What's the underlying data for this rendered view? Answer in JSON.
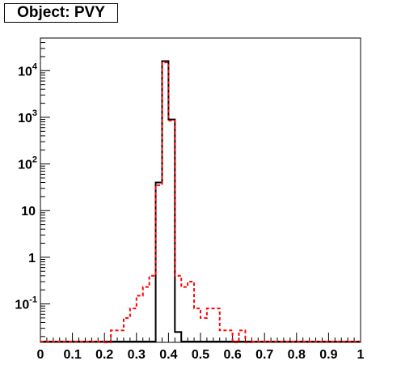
{
  "chart_data": {
    "type": "histogram",
    "title": "Object: PVY",
    "xlabel": "",
    "ylabel": "",
    "xlim": [
      0,
      1
    ],
    "ylim": [
      0.015,
      50000
    ],
    "yscale": "log",
    "grid": false,
    "legend": "none",
    "bin_width": 0.02,
    "x_ticks": [
      {
        "value": 0,
        "label": "0"
      },
      {
        "value": 0.1,
        "label": "0.1"
      },
      {
        "value": 0.2,
        "label": "0.2"
      },
      {
        "value": 0.3,
        "label": "0.3"
      },
      {
        "value": 0.4,
        "label": "0.4"
      },
      {
        "value": 0.5,
        "label": "0.5"
      },
      {
        "value": 0.6,
        "label": "0.6"
      },
      {
        "value": 0.7,
        "label": "0.7"
      },
      {
        "value": 0.8,
        "label": "0.8"
      },
      {
        "value": 0.9,
        "label": "0.9"
      },
      {
        "value": 1,
        "label": "1"
      }
    ],
    "y_ticks": [
      {
        "value": 0.1,
        "base": "10",
        "exp": "-1"
      },
      {
        "value": 1,
        "base": "1",
        "exp": ""
      },
      {
        "value": 10,
        "base": "10",
        "exp": ""
      },
      {
        "value": 100,
        "base": "10",
        "exp": "2"
      },
      {
        "value": 1000,
        "base": "10",
        "exp": "3"
      },
      {
        "value": 10000,
        "base": "10",
        "exp": "4"
      }
    ],
    "series": [
      {
        "color": "#000000",
        "line_style": "solid",
        "bins": [
          {
            "x0": 0.36,
            "value": 40
          },
          {
            "x0": 0.38,
            "value": 16000
          },
          {
            "x0": 0.4,
            "value": 900
          },
          {
            "x0": 0.42,
            "value": 0.025
          }
        ]
      },
      {
        "color": "#ff0000",
        "line_style": "dashed",
        "bins": [
          {
            "x0": 0.2,
            "value": 0.015
          },
          {
            "x0": 0.22,
            "value": 0.027
          },
          {
            "x0": 0.24,
            "value": 0.027
          },
          {
            "x0": 0.26,
            "value": 0.05
          },
          {
            "x0": 0.28,
            "value": 0.08
          },
          {
            "x0": 0.3,
            "value": 0.15
          },
          {
            "x0": 0.32,
            "value": 0.23
          },
          {
            "x0": 0.34,
            "value": 0.4
          },
          {
            "x0": 0.36,
            "value": 35
          },
          {
            "x0": 0.38,
            "value": 15000
          },
          {
            "x0": 0.4,
            "value": 850
          },
          {
            "x0": 0.42,
            "value": 0.4
          },
          {
            "x0": 0.44,
            "value": 0.23
          },
          {
            "x0": 0.46,
            "value": 0.3
          },
          {
            "x0": 0.48,
            "value": 0.08
          },
          {
            "x0": 0.5,
            "value": 0.05
          },
          {
            "x0": 0.52,
            "value": 0.08
          },
          {
            "x0": 0.54,
            "value": 0.08
          },
          {
            "x0": 0.56,
            "value": 0.027
          },
          {
            "x0": 0.58,
            "value": 0.027
          },
          {
            "x0": 0.6,
            "value": 0.015
          },
          {
            "x0": 0.62,
            "value": 0.027
          },
          {
            "x0": 0.64,
            "value": 0.015
          }
        ]
      }
    ]
  }
}
